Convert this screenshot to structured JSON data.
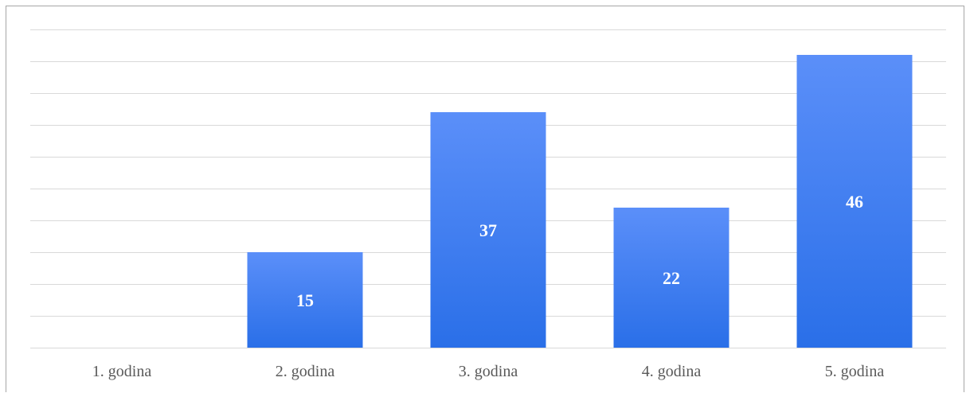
{
  "chart_data": {
    "type": "bar",
    "categories": [
      "1. godina",
      "2. godina",
      "3. godina",
      "4. godina",
      "5. godina"
    ],
    "values": [
      null,
      15,
      37,
      22,
      46
    ],
    "data_labels": [
      "",
      "15",
      "37",
      "22",
      "46"
    ],
    "title": "",
    "xlabel": "",
    "ylabel": "",
    "ylim": [
      0,
      50
    ],
    "y_tick_step": 5,
    "y_tick_labels_visible": false,
    "grid": true,
    "legend": "none",
    "colors": {
      "bar_top": "#5b8ff9",
      "bar_bottom": "#2a6fe8",
      "gridline": "#d9d9d9",
      "tick_text": "#595959",
      "data_label_text": "#ffffff"
    }
  }
}
